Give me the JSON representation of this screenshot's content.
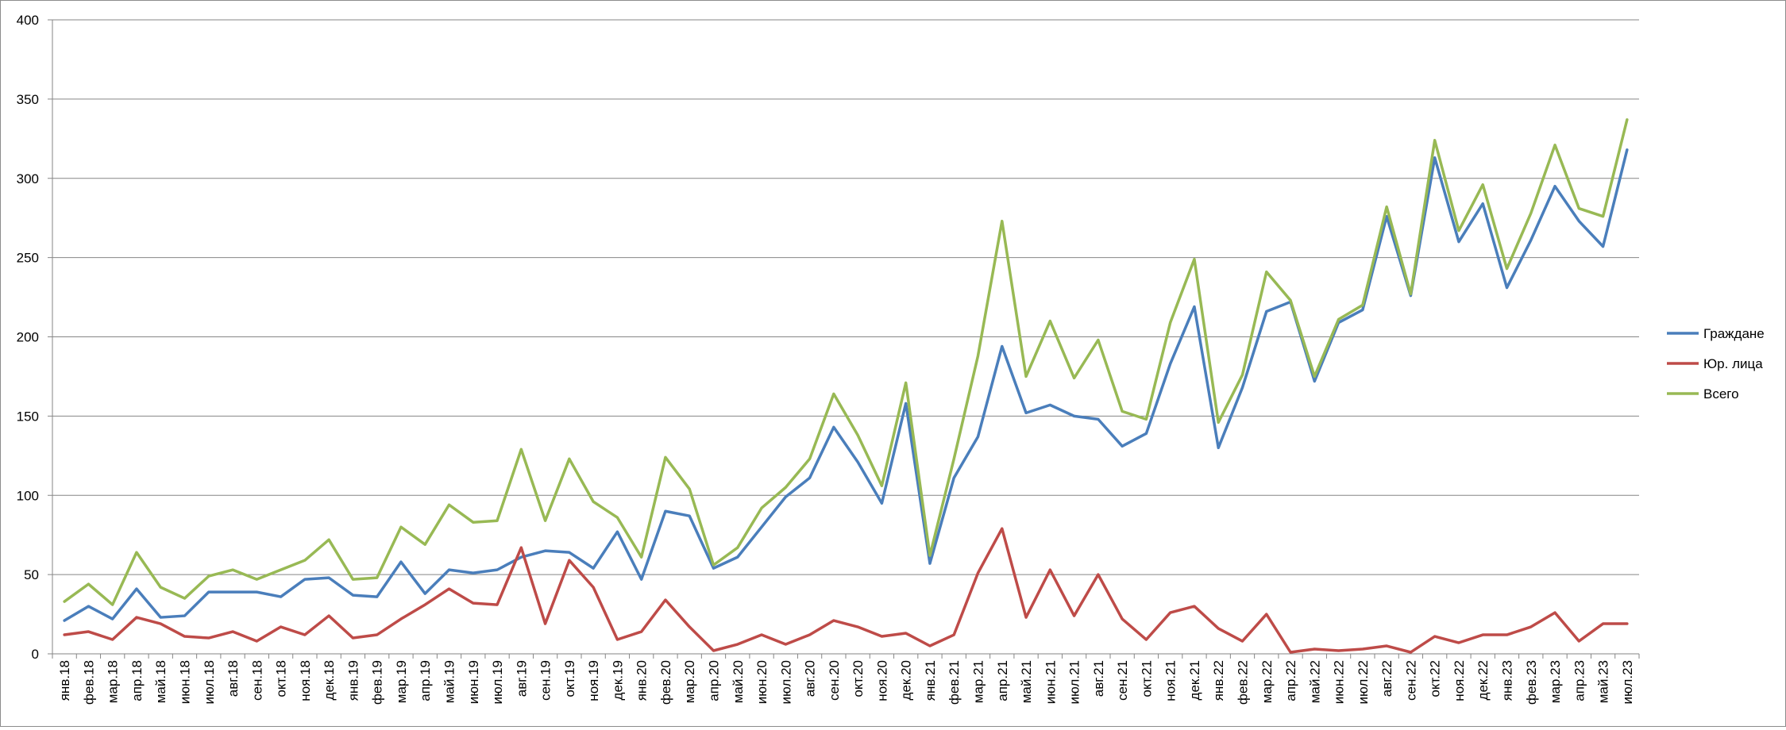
{
  "chart_data": {
    "type": "line",
    "title": "",
    "xlabel": "",
    "ylabel": "",
    "ylim": [
      0,
      400
    ],
    "yticks": [
      0,
      50,
      100,
      150,
      200,
      250,
      300,
      350,
      400
    ],
    "grid": true,
    "legend_position": "right",
    "categories": [
      "янв.18",
      "фев.18",
      "мар.18",
      "апр.18",
      "май.18",
      "июн.18",
      "июл.18",
      "авг.18",
      "сен.18",
      "окт.18",
      "ноя.18",
      "дек.18",
      "янв.19",
      "фев.19",
      "мар.19",
      "апр.19",
      "май.19",
      "июн.19",
      "июл.19",
      "авг.19",
      "сен.19",
      "окт.19",
      "ноя.19",
      "дек.19",
      "янв.20",
      "фев.20",
      "мар.20",
      "апр.20",
      "май.20",
      "июн.20",
      "июл.20",
      "авг.20",
      "сен.20",
      "окт.20",
      "ноя.20",
      "дек.20",
      "янв.21",
      "фев.21",
      "мар.21",
      "апр.21",
      "май.21",
      "июн.21",
      "июл.21",
      "авг.21",
      "сен.21",
      "окт.21",
      "ноя.21",
      "дек.21",
      "янв.22",
      "фев.22",
      "мар.22",
      "апр.22",
      "май.22",
      "июн.22",
      "июл.22",
      "авг.22",
      "сен.22",
      "окт.22",
      "ноя.22",
      "дек.22",
      "янв.23",
      "фев.23",
      "мар.23",
      "апр.23",
      "май.23",
      "июл.23"
    ],
    "series": [
      {
        "name": "Граждане",
        "color": "#4a7ebb",
        "values": [
          21,
          30,
          22,
          41,
          23,
          24,
          39,
          39,
          39,
          36,
          47,
          48,
          37,
          36,
          58,
          38,
          53,
          51,
          53,
          61,
          65,
          64,
          54,
          77,
          47,
          90,
          87,
          54,
          61,
          80,
          99,
          111,
          143,
          121,
          95,
          158,
          57,
          111,
          137,
          194,
          152,
          157,
          150,
          148,
          131,
          139,
          183,
          219,
          130,
          168,
          216,
          222,
          172,
          209,
          217,
          276,
          226,
          313,
          260,
          284,
          231,
          261,
          295,
          273,
          257,
          318
        ]
      },
      {
        "name": "Юр. лица",
        "color": "#be4b48",
        "values": [
          12,
          14,
          9,
          23,
          19,
          11,
          10,
          14,
          8,
          17,
          12,
          24,
          10,
          12,
          22,
          31,
          41,
          32,
          31,
          67,
          19,
          59,
          42,
          9,
          14,
          34,
          17,
          2,
          6,
          12,
          6,
          12,
          21,
          17,
          11,
          13,
          5,
          12,
          51,
          79,
          23,
          53,
          24,
          50,
          22,
          9,
          26,
          30,
          16,
          8,
          25,
          1,
          3,
          2,
          3,
          5,
          1,
          11,
          7,
          12,
          12,
          17,
          26,
          8,
          19,
          19
        ]
      },
      {
        "name": "Всего",
        "color": "#98b954",
        "values": [
          33,
          44,
          31,
          64,
          42,
          35,
          49,
          53,
          47,
          53,
          59,
          72,
          47,
          48,
          80,
          69,
          94,
          83,
          84,
          129,
          84,
          123,
          96,
          86,
          61,
          124,
          104,
          56,
          67,
          92,
          105,
          123,
          164,
          138,
          106,
          171,
          62,
          123,
          188,
          273,
          175,
          210,
          174,
          198,
          153,
          148,
          209,
          249,
          146,
          176,
          241,
          223,
          175,
          211,
          220,
          282,
          227,
          324,
          267,
          296,
          243,
          278,
          321,
          281,
          276,
          337
        ]
      }
    ]
  }
}
